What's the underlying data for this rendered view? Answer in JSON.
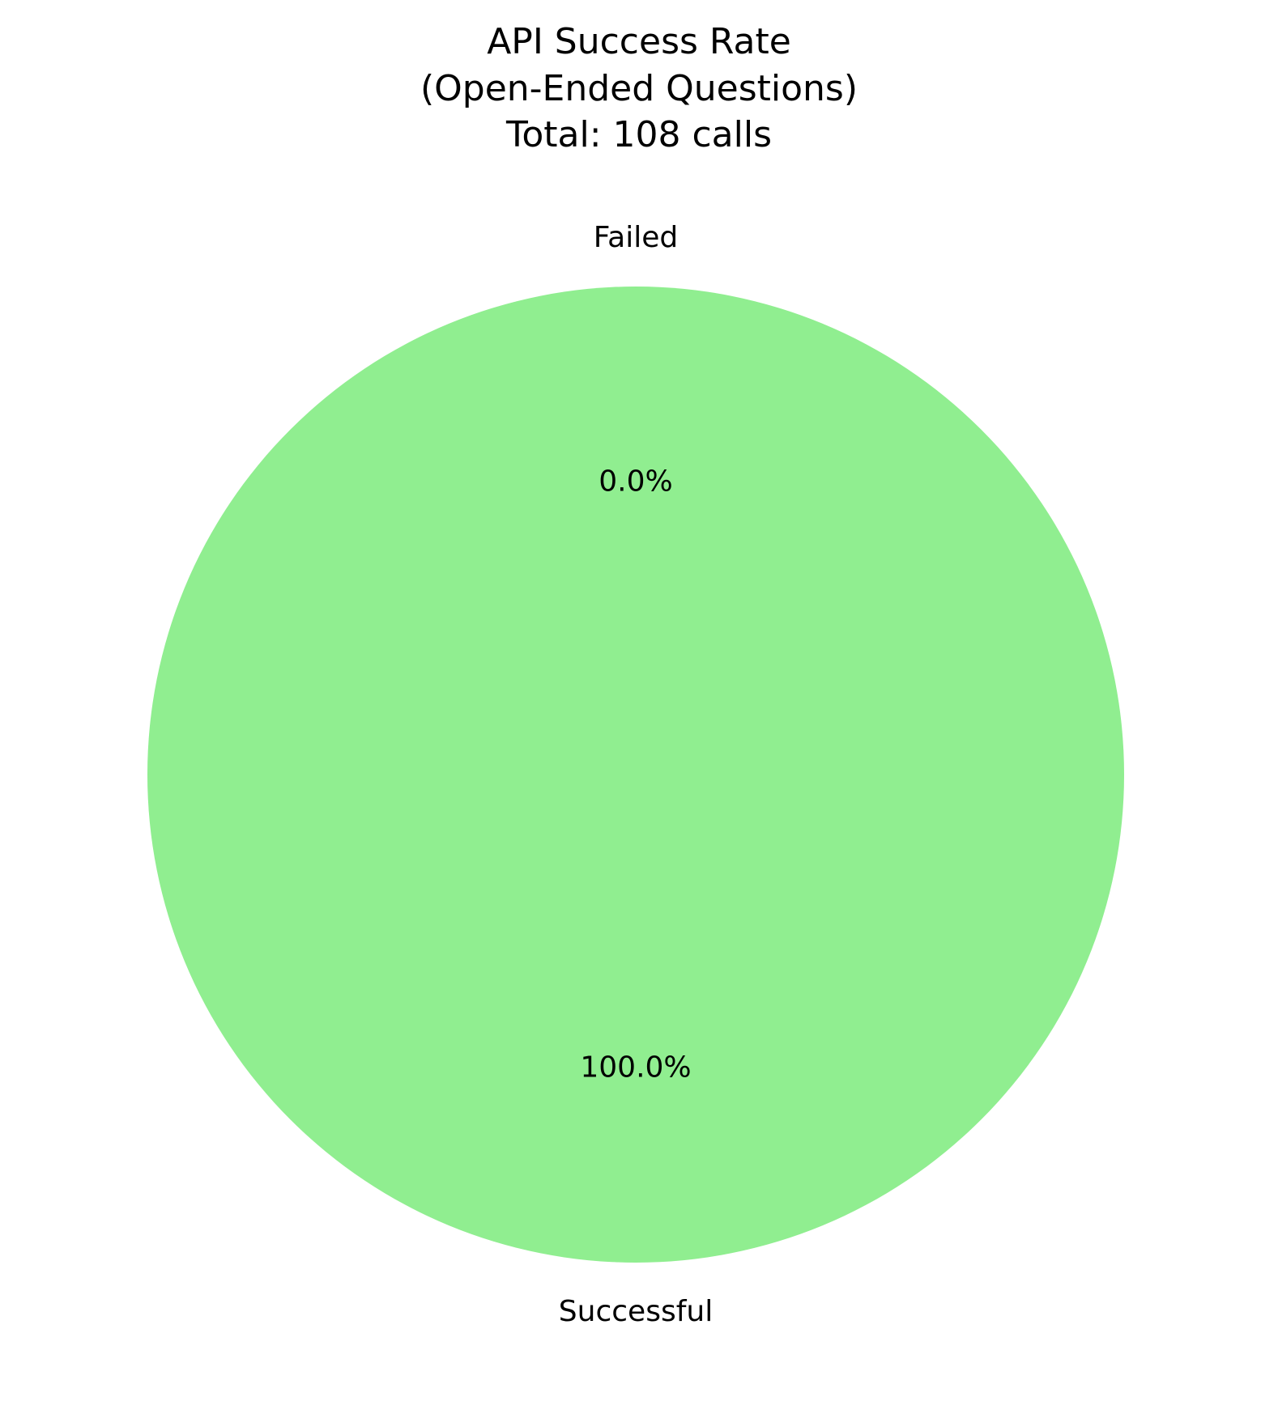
{
  "chart_data": {
    "type": "pie",
    "title_lines": [
      "API Success Rate",
      "(Open-Ended Questions)",
      "Total: 108 calls"
    ],
    "slices": [
      {
        "label": "Failed",
        "value": 0,
        "pct_label": "0.0%",
        "color": "#ff9999"
      },
      {
        "label": "Successful",
        "value": 108,
        "pct_label": "100.0%",
        "color": "#90ee90"
      }
    ],
    "start_angle_deg": 90,
    "direction": "counterclockwise"
  }
}
